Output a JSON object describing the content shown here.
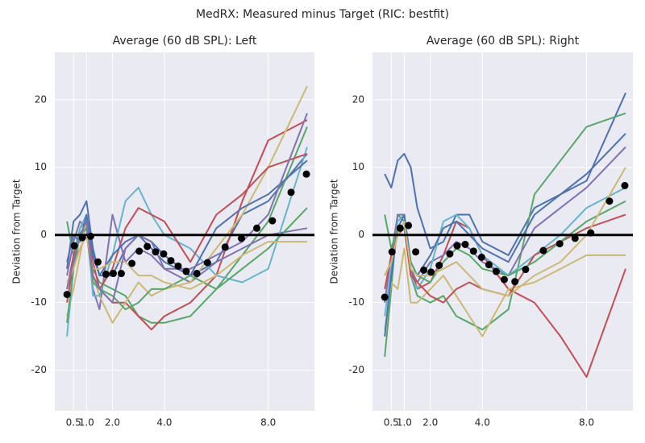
{
  "title": "MedRX: Measured minus Target (RIC: bestfit)",
  "chart_data": [
    {
      "type": "line",
      "title": "Average (60 dB SPL): Left",
      "ylabel": "Deviation from Target",
      "xlim": [
        -0.22,
        9.78
      ],
      "ylim": [
        -26,
        27
      ],
      "xticks": [
        0.5,
        {
          "value": 1.0,
          "label": "1.0"
        },
        {
          "value": 2.0,
          "label": "2.0"
        },
        {
          "value": 4.0,
          "label": "4.0"
        },
        {
          "value": 8.0,
          "label": "8.0"
        }
      ],
      "yticks": [
        -20,
        -10,
        0,
        10,
        20
      ],
      "grid": true,
      "reference_line": 0,
      "x": [
        0.25,
        0.5,
        0.75,
        1.0,
        1.25,
        1.5,
        2,
        2.5,
        3,
        3.5,
        4,
        5,
        6,
        7,
        8,
        9.5
      ],
      "series": [
        {
          "color": "#4C72B0",
          "values": [
            -5,
            2,
            3,
            5,
            -2,
            -6,
            -6,
            -2,
            0,
            -1,
            -3,
            -6,
            -4,
            3,
            5,
            12
          ]
        },
        {
          "color": "#55A868",
          "values": [
            2,
            -3,
            1,
            2,
            -5,
            -7,
            -8,
            -9,
            -12,
            -13,
            -13,
            -12,
            -8,
            -3,
            2,
            16
          ]
        },
        {
          "color": "#C44E52",
          "values": [
            -8,
            -3,
            0,
            2,
            -4,
            -8,
            -10,
            -10,
            -12,
            -14,
            -12,
            -10,
            -6,
            5,
            14,
            17
          ]
        },
        {
          "color": "#8172B2",
          "values": [
            -6,
            -1,
            2,
            1,
            -8,
            -11,
            3,
            -4,
            -2,
            -3,
            -5,
            -7,
            -4,
            -2,
            0,
            1
          ]
        },
        {
          "color": "#CCB974",
          "values": [
            -12,
            -8,
            -3,
            2,
            -6,
            -9,
            -13,
            -10,
            -7,
            -9,
            -8,
            -7,
            -2,
            3,
            10,
            22
          ]
        },
        {
          "color": "#64B5CD",
          "values": [
            -15,
            -5,
            1,
            3,
            -9,
            -9,
            -3,
            5,
            7,
            3,
            0,
            -2,
            -6,
            -7,
            -5,
            13
          ]
        },
        {
          "color": "#C44E52",
          "values": [
            -10,
            -4,
            -2,
            0,
            -6,
            -8,
            -5,
            1,
            4,
            3,
            2,
            -4,
            3,
            6,
            10,
            12
          ]
        },
        {
          "color": "#4C72B0",
          "values": [
            -4,
            0,
            -1,
            3,
            -3,
            -6,
            -3,
            -1,
            0,
            -2,
            -4,
            -6,
            1,
            4,
            6,
            11
          ]
        },
        {
          "color": "#55A868",
          "values": [
            -13,
            -5,
            0,
            1,
            -7,
            -8,
            -9,
            -11,
            -10,
            -8,
            -8,
            -6,
            -8,
            -5,
            -2,
            4
          ]
        },
        {
          "color": "#CCB974",
          "values": [
            -7,
            -5,
            -2,
            0,
            -5,
            -5,
            -4,
            -4,
            -6,
            -6,
            -7,
            -8,
            -6,
            -3,
            -1,
            -1
          ]
        },
        {
          "color": "#8172B2",
          "values": [
            -8,
            -4,
            0,
            2,
            -6,
            -8,
            -10,
            -2,
            0,
            -1,
            -5,
            -5,
            -3,
            -1,
            3,
            18
          ]
        }
      ],
      "markers": {
        "color": "#000000",
        "x": [
          0.25,
          0.53,
          0.84,
          1.16,
          1.44,
          1.75,
          2.03,
          2.34,
          2.75,
          3.03,
          3.34,
          3.66,
          3.97,
          4.25,
          4.53,
          4.84,
          5.25,
          5.66,
          6.34,
          6.97,
          7.56,
          8.16,
          8.88,
          9.47
        ],
        "values": [
          -8.8,
          -1.6,
          -0.4,
          -0.2,
          -4.0,
          -5.8,
          -5.7,
          -5.7,
          -4.2,
          -2.4,
          -1.7,
          -2.5,
          -2.8,
          -3.8,
          -4.6,
          -5.4,
          -5.7,
          -4.1,
          -1.8,
          -0.5,
          1.0,
          2.1,
          6.3,
          9.0
        ]
      }
    },
    {
      "type": "line",
      "title": "Average (60 dB SPL): Right",
      "ylabel": "Deviation from Target",
      "xlim": [
        -0.22,
        9.78
      ],
      "ylim": [
        -26,
        27
      ],
      "xticks": [
        0.5,
        {
          "value": 1.0,
          "label": "1.0"
        },
        {
          "value": 2.0,
          "label": "2.0"
        },
        {
          "value": 4.0,
          "label": "4.0"
        },
        {
          "value": 8.0,
          "label": "8.0"
        }
      ],
      "yticks": [
        -20,
        -10,
        0,
        10,
        20
      ],
      "grid": true,
      "reference_line": 0,
      "x": [
        0.25,
        0.5,
        0.75,
        1.0,
        1.25,
        1.5,
        2,
        2.5,
        3,
        3.5,
        4,
        5,
        6,
        7,
        8,
        9.5
      ],
      "series": [
        {
          "color": "#4C72B0",
          "values": [
            9,
            7,
            11,
            12,
            10,
            4,
            -2,
            -1,
            3,
            3,
            -1,
            -3,
            4,
            6,
            8,
            21
          ]
        },
        {
          "color": "#C44E52",
          "values": [
            -6,
            -4,
            3,
            2,
            -5,
            -8,
            -7,
            -3,
            2,
            1,
            -3,
            -8,
            -10,
            -15,
            -21,
            -5
          ]
        },
        {
          "color": "#55A868",
          "values": [
            -18,
            -8,
            3,
            2,
            -6,
            -9,
            -10,
            -9,
            -12,
            -13,
            -14,
            -11,
            6,
            11,
            16,
            18
          ]
        },
        {
          "color": "#8172B2",
          "values": [
            -10,
            -3,
            3,
            3,
            -5,
            -7,
            -4,
            -3,
            -1,
            -2,
            -4,
            -6,
            1,
            4,
            7,
            13
          ]
        },
        {
          "color": "#CCB974",
          "values": [
            -14,
            -7,
            -8,
            -2,
            -10,
            -10,
            -8,
            -6,
            -9,
            -12,
            -15,
            -8,
            -7,
            -5,
            -3,
            -3
          ]
        },
        {
          "color": "#64B5CD",
          "values": [
            -12,
            -5,
            2,
            3,
            -6,
            -8,
            -5,
            2,
            3,
            1,
            -3,
            -6,
            -3,
            0,
            4,
            7
          ]
        },
        {
          "color": "#C44E52",
          "values": [
            -8,
            -3,
            0,
            1,
            -6,
            -7,
            -9,
            -10,
            -8,
            -7,
            -8,
            -9,
            -3,
            -1,
            1,
            3
          ]
        },
        {
          "color": "#4C72B0",
          "values": [
            -15,
            -6,
            1,
            3,
            -4,
            -6,
            -3,
            1,
            2,
            0,
            -2,
            -4,
            3,
            6,
            9,
            15
          ]
        },
        {
          "color": "#55A868",
          "values": [
            3,
            -2,
            1,
            1,
            -4,
            -6,
            -7,
            -4,
            -2,
            -3,
            -5,
            -6,
            -4,
            -1,
            2,
            5
          ]
        },
        {
          "color": "#CCB974",
          "values": [
            -6,
            -4,
            0,
            2,
            -5,
            -6,
            -6,
            -5,
            -4,
            -6,
            -8,
            -9,
            -6,
            -4,
            0,
            10
          ]
        }
      ],
      "markers": {
        "color": "#000000",
        "x": [
          0.25,
          0.53,
          0.84,
          1.16,
          1.44,
          1.75,
          2.03,
          2.34,
          2.75,
          3.03,
          3.34,
          3.66,
          3.97,
          4.25,
          4.53,
          4.84,
          5.25,
          5.66,
          6.34,
          6.97,
          7.56,
          8.16,
          8.88,
          9.47
        ],
        "values": [
          -9.2,
          -2.5,
          1.0,
          1.4,
          -2.5,
          -5.2,
          -5.5,
          -4.5,
          -2.8,
          -1.6,
          -1.4,
          -2.4,
          -3.3,
          -4.4,
          -5.4,
          -6.6,
          -6.9,
          -5.1,
          -2.3,
          -1.3,
          -0.5,
          0.3,
          5.0,
          7.3
        ]
      }
    }
  ]
}
